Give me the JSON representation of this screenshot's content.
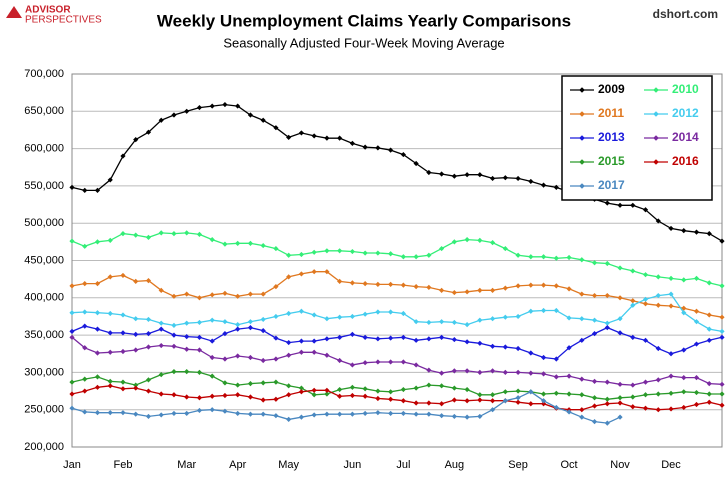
{
  "chart_data": {
    "type": "line",
    "title": "Weekly Unemployment Claims Yearly Comparisons",
    "subtitle": "Seasonally Adjusted Four-Week Moving Average",
    "source": "dshort.com",
    "logo": [
      "ADVISOR",
      "PERSPECTIVES"
    ],
    "categories": [
      "Jan",
      null,
      null,
      null,
      "Feb",
      null,
      null,
      null,
      null,
      "Mar",
      null,
      null,
      null,
      "Apr",
      null,
      null,
      null,
      "May",
      null,
      null,
      null,
      null,
      "Jun",
      null,
      null,
      null,
      "Jul",
      null,
      null,
      null,
      "Aug",
      null,
      null,
      null,
      null,
      "Sep",
      null,
      null,
      null,
      "Oct",
      null,
      null,
      null,
      "Nov",
      null,
      null,
      null,
      "Dec",
      null,
      null,
      null,
      null
    ],
    "ylim": [
      200000,
      700000
    ],
    "yticks": [
      {
        "value": 200000,
        "label": "200,000"
      },
      {
        "value": 250000,
        "label": "250,000"
      },
      {
        "value": 300000,
        "label": "300,000"
      },
      {
        "value": 350000,
        "label": "350,000"
      },
      {
        "value": 400000,
        "label": "400,000"
      },
      {
        "value": 450000,
        "label": "450,000"
      },
      {
        "value": 500000,
        "label": "500,000"
      },
      {
        "value": 550000,
        "label": "550,000"
      },
      {
        "value": 600000,
        "label": "600,000"
      },
      {
        "value": 650000,
        "label": "650,000"
      },
      {
        "value": 700000,
        "label": "700,000"
      }
    ],
    "grid": true,
    "legend": "upper right",
    "series": [
      {
        "name": "2009",
        "color": "#000000",
        "values": [
          548000,
          544000,
          544000,
          558000,
          590000,
          612000,
          622000,
          638000,
          645000,
          650000,
          655000,
          657000,
          659000,
          657000,
          645000,
          638000,
          628000,
          615000,
          621000,
          617000,
          614000,
          614000,
          607000,
          602000,
          601000,
          598000,
          592000,
          580000,
          568000,
          566000,
          563000,
          565000,
          565000,
          560000,
          561000,
          560000,
          556000,
          551000,
          548000,
          542000,
          534000,
          532000,
          527000,
          524000,
          524000,
          518000,
          503000,
          493000,
          490000,
          488000,
          486000,
          476000
        ]
      },
      {
        "name": "2010",
        "color": "#33ee77",
        "values": [
          476000,
          469000,
          475000,
          477000,
          486000,
          484000,
          481000,
          487000,
          486000,
          487000,
          485000,
          478000,
          472000,
          473000,
          473000,
          470000,
          466000,
          457000,
          458000,
          461000,
          463000,
          463000,
          462000,
          460000,
          460000,
          459000,
          455000,
          455000,
          457000,
          466000,
          475000,
          478000,
          477000,
          474000,
          466000,
          457000,
          455000,
          455000,
          453000,
          454000,
          451000,
          447000,
          446000,
          440000,
          436000,
          431000,
          428000,
          426000,
          424000,
          426000,
          420000,
          416000
        ]
      },
      {
        "name": "2011",
        "color": "#e07820",
        "values": [
          416000,
          419000,
          419000,
          428000,
          430000,
          422000,
          423000,
          410000,
          402000,
          405000,
          400000,
          404000,
          406000,
          402000,
          405000,
          405000,
          415000,
          428000,
          432000,
          435000,
          435000,
          422000,
          420000,
          419000,
          418000,
          418000,
          417000,
          415000,
          414000,
          410000,
          407000,
          408000,
          410000,
          410000,
          413000,
          416000,
          417000,
          417000,
          416000,
          412000,
          405000,
          403000,
          403000,
          400000,
          396000,
          392000,
          390000,
          389000,
          386000,
          382000,
          377000,
          374000
        ]
      },
      {
        "name": "2012",
        "color": "#44ccee",
        "values": [
          380000,
          381000,
          380000,
          379000,
          377000,
          372000,
          371000,
          366000,
          363000,
          366000,
          367000,
          370000,
          368000,
          364000,
          368000,
          371000,
          375000,
          379000,
          382000,
          377000,
          372000,
          374000,
          375000,
          378000,
          381000,
          381000,
          379000,
          368000,
          367000,
          368000,
          367000,
          364000,
          370000,
          372000,
          374000,
          375000,
          382000,
          383000,
          383000,
          373000,
          372000,
          370000,
          366000,
          372000,
          390000,
          398000,
          403000,
          405000,
          380000,
          368000,
          358000,
          355000
        ]
      },
      {
        "name": "2013",
        "color": "#1a1adc",
        "values": [
          355000,
          362000,
          358000,
          353000,
          353000,
          351000,
          352000,
          358000,
          350000,
          348000,
          347000,
          342000,
          352000,
          358000,
          360000,
          356000,
          346000,
          340000,
          342000,
          342000,
          345000,
          347000,
          351000,
          347000,
          345000,
          346000,
          347000,
          343000,
          345000,
          347000,
          344000,
          341000,
          339000,
          335000,
          334000,
          332000,
          326000,
          320000,
          318000,
          333000,
          343000,
          352000,
          360000,
          353000,
          347000,
          343000,
          332000,
          325000,
          330000,
          338000,
          343000,
          347000
        ]
      },
      {
        "name": "2014",
        "color": "#7a2aa0",
        "values": [
          347000,
          333000,
          326000,
          327000,
          328000,
          330000,
          334000,
          336000,
          335000,
          331000,
          330000,
          320000,
          318000,
          322000,
          320000,
          316000,
          318000,
          323000,
          327000,
          327000,
          323000,
          316000,
          310000,
          313000,
          314000,
          314000,
          314000,
          310000,
          303000,
          299000,
          302000,
          302000,
          300000,
          302000,
          300000,
          300000,
          299000,
          298000,
          294000,
          295000,
          291000,
          288000,
          287000,
          284000,
          283000,
          287000,
          290000,
          295000,
          293000,
          293000,
          285000,
          284000
        ]
      },
      {
        "name": "2015",
        "color": "#2a9a2a",
        "values": [
          287000,
          291000,
          294000,
          288000,
          287000,
          283000,
          290000,
          297000,
          301000,
          301000,
          300000,
          295000,
          286000,
          283000,
          285000,
          286000,
          287000,
          282000,
          279000,
          270000,
          271000,
          277000,
          280000,
          278000,
          275000,
          274000,
          277000,
          279000,
          283000,
          282000,
          279000,
          277000,
          270000,
          270000,
          274000,
          275000,
          274000,
          271000,
          272000,
          271000,
          270000,
          266000,
          264000,
          266000,
          267000,
          270000,
          271000,
          272000,
          274000,
          273000,
          271000,
          271000
        ]
      },
      {
        "name": "2016",
        "color": "#c00000",
        "values": [
          271000,
          275000,
          280000,
          282000,
          278000,
          279000,
          275000,
          271000,
          270000,
          267000,
          266000,
          268000,
          269000,
          270000,
          267000,
          263000,
          264000,
          270000,
          274000,
          276000,
          276000,
          268000,
          269000,
          268000,
          265000,
          264000,
          262000,
          259000,
          259000,
          258000,
          263000,
          262000,
          263000,
          262000,
          262000,
          260000,
          258000,
          258000,
          252000,
          250000,
          250000,
          255000,
          258000,
          259000,
          254000,
          252000,
          250000,
          251000,
          253000,
          257000,
          260000,
          256000
        ]
      },
      {
        "name": "2017",
        "color": "#4a88c0",
        "values": [
          252000,
          247000,
          246000,
          246000,
          246000,
          244000,
          241000,
          243000,
          245000,
          245000,
          249000,
          250000,
          248000,
          245000,
          244000,
          244000,
          242000,
          237000,
          240000,
          243000,
          244000,
          244000,
          244000,
          245000,
          246000,
          245000,
          245000,
          244000,
          244000,
          242000,
          241000,
          240000,
          241000,
          250000,
          262000,
          266000,
          274000,
          262000,
          253000,
          247000,
          240000,
          234000,
          232000,
          240000,
          null,
          null,
          null,
          null,
          null,
          null,
          null,
          null
        ]
      }
    ]
  }
}
